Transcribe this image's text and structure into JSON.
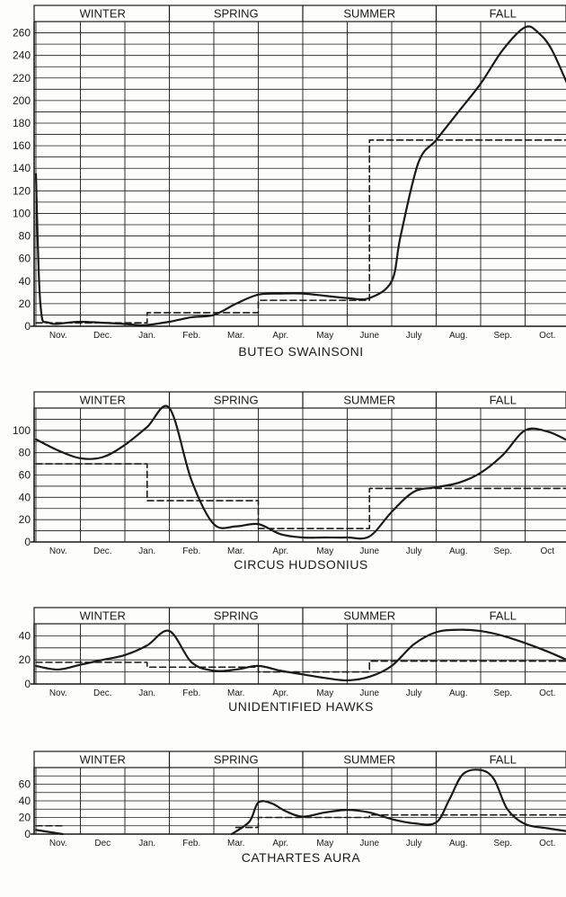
{
  "chart_data": [
    {
      "type": "line",
      "title": "BUTEO SWAINSONI",
      "seasons": [
        "WINTER",
        "SPRING",
        "SUMMER",
        "FALL"
      ],
      "categories": [
        "Nov.",
        "Dec.",
        "Jan.",
        "Feb.",
        "Mar.",
        "Apr.",
        "May",
        "June",
        "July",
        "Aug.",
        "Sep.",
        "Oct."
      ],
      "ylim": [
        0,
        270
      ],
      "yticks": [
        0,
        20,
        40,
        60,
        80,
        100,
        120,
        140,
        160,
        180,
        200,
        220,
        240,
        260
      ],
      "grid": true,
      "series": [
        {
          "style": "solid",
          "points": [
            [
              0,
              135
            ],
            [
              0.1,
              20
            ],
            [
              0.3,
              3
            ],
            [
              1,
              4
            ],
            [
              2,
              2
            ],
            [
              2.45,
              1
            ],
            [
              3,
              4
            ],
            [
              3.5,
              8
            ],
            [
              4,
              10
            ],
            [
              4.5,
              20
            ],
            [
              5,
              28
            ],
            [
              5.5,
              29
            ],
            [
              6,
              29
            ],
            [
              6.5,
              27
            ],
            [
              7,
              25
            ],
            [
              7.5,
              25
            ],
            [
              8,
              40
            ],
            [
              8.2,
              80
            ],
            [
              8.6,
              145
            ],
            [
              9,
              165
            ],
            [
              9.5,
              190
            ],
            [
              10,
              215
            ],
            [
              10.5,
              245
            ],
            [
              11,
              265
            ],
            [
              11.3,
              260
            ],
            [
              11.6,
              245
            ],
            [
              12,
              210
            ]
          ]
        },
        {
          "style": "dashed",
          "points": [
            [
              0,
              3
            ],
            [
              2.5,
              3
            ],
            [
              2.5,
              12
            ],
            [
              5,
              12
            ],
            [
              5,
              23
            ],
            [
              7.5,
              23
            ],
            [
              7.5,
              165
            ],
            [
              12,
              165
            ]
          ]
        }
      ]
    },
    {
      "type": "line",
      "title": "CIRCUS HUDSONIUS",
      "seasons": [
        "WINTER",
        "SPRING",
        "SUMMER",
        "FALL"
      ],
      "categories": [
        "Nov.",
        "Dec.",
        "Jan.",
        "Feb.",
        "Mar.",
        "Apr.",
        "May",
        "June",
        "July",
        "Aug.",
        "Sep.",
        "Oct"
      ],
      "ylim": [
        0,
        120
      ],
      "yticks": [
        0,
        20,
        40,
        60,
        80,
        100
      ],
      "grid": true,
      "series": [
        {
          "style": "solid",
          "points": [
            [
              0,
              92
            ],
            [
              0.5,
              82
            ],
            [
              1,
              75
            ],
            [
              1.5,
              76
            ],
            [
              2,
              87
            ],
            [
              2.5,
              103
            ],
            [
              3,
              120
            ],
            [
              3.5,
              55
            ],
            [
              4,
              16
            ],
            [
              4.5,
              14
            ],
            [
              5,
              16
            ],
            [
              5.5,
              7
            ],
            [
              6,
              4
            ],
            [
              6.5,
              4
            ],
            [
              7,
              4
            ],
            [
              7.5,
              5
            ],
            [
              8,
              27
            ],
            [
              8.5,
              45
            ],
            [
              9,
              49
            ],
            [
              9.5,
              53
            ],
            [
              10,
              62
            ],
            [
              10.5,
              78
            ],
            [
              11,
              100
            ],
            [
              11.5,
              99
            ],
            [
              12,
              90
            ]
          ]
        },
        {
          "style": "dashed",
          "points": [
            [
              0,
              70
            ],
            [
              2.5,
              70
            ],
            [
              2.5,
              37
            ],
            [
              5,
              37
            ],
            [
              5,
              12
            ],
            [
              7.5,
              12
            ],
            [
              7.5,
              48
            ],
            [
              12,
              48
            ]
          ]
        }
      ]
    },
    {
      "type": "line",
      "title": "UNIDENTIFIED HAWKS",
      "seasons": [
        "WINTER",
        "SPRING",
        "SUMMER",
        "FALL"
      ],
      "categories": [
        "Nov.",
        "Dec.",
        "Jan.",
        "Feb.",
        "Mar.",
        "Apr.",
        "May",
        "June",
        "July",
        "Aug.",
        "Sep.",
        "Oct."
      ],
      "ylim": [
        0,
        50
      ],
      "yticks": [
        0,
        20,
        40
      ],
      "grid": true,
      "series": [
        {
          "style": "solid",
          "points": [
            [
              0,
              15
            ],
            [
              0.5,
              12
            ],
            [
              1,
              16
            ],
            [
              1.5,
              20
            ],
            [
              2,
              24
            ],
            [
              2.5,
              32
            ],
            [
              3,
              44
            ],
            [
              3.5,
              18
            ],
            [
              4,
              11
            ],
            [
              4.5,
              12
            ],
            [
              5,
              15
            ],
            [
              5.5,
              11
            ],
            [
              6,
              8
            ],
            [
              6.5,
              5
            ],
            [
              7,
              3
            ],
            [
              7.5,
              6
            ],
            [
              8,
              15
            ],
            [
              8.5,
              33
            ],
            [
              9,
              43
            ],
            [
              9.5,
              45
            ],
            [
              10,
              44
            ],
            [
              10.5,
              40
            ],
            [
              11,
              34
            ],
            [
              11.5,
              27
            ],
            [
              12,
              19
            ]
          ]
        },
        {
          "style": "dashed",
          "points": [
            [
              0,
              18
            ],
            [
              2.5,
              18
            ],
            [
              2.5,
              14
            ],
            [
              5,
              14
            ],
            [
              5,
              10
            ],
            [
              7.5,
              10
            ],
            [
              7.5,
              19
            ],
            [
              12,
              19
            ]
          ]
        }
      ]
    },
    {
      "type": "line",
      "title": "CATHARTES AURA",
      "seasons": [
        "WINTER",
        "SPRING",
        "SUMMER",
        "FALL"
      ],
      "categories": [
        "Nov.",
        "Dec",
        "Jan.",
        "Feb.",
        "Mar.",
        "Apr.",
        "May",
        "June",
        "July",
        "Aug.",
        "Sep.",
        "Oct."
      ],
      "ylim": [
        0,
        80
      ],
      "yticks": [
        0,
        20,
        40,
        60
      ],
      "grid": true,
      "series": [
        {
          "style": "solid",
          "points": [
            [
              0,
              5
            ],
            [
              0.6,
              0
            ]
          ]
        },
        {
          "style": "solid",
          "points": [
            [
              4.4,
              0
            ],
            [
              4.8,
              15
            ],
            [
              5,
              38
            ],
            [
              5.3,
              37
            ],
            [
              5.6,
              28
            ],
            [
              6,
              21
            ],
            [
              6.5,
              26
            ],
            [
              7,
              29
            ],
            [
              7.5,
              26
            ],
            [
              8,
              18
            ],
            [
              8.5,
              13
            ],
            [
              9,
              14
            ],
            [
              9.3,
              42
            ],
            [
              9.6,
              72
            ],
            [
              10,
              77
            ],
            [
              10.3,
              66
            ],
            [
              10.6,
              30
            ],
            [
              11,
              12
            ],
            [
              11.5,
              7
            ],
            [
              12,
              3
            ]
          ]
        },
        {
          "style": "dashed",
          "points": [
            [
              0,
              10
            ],
            [
              0.6,
              10
            ]
          ]
        },
        {
          "style": "dashed",
          "points": [
            [
              4.5,
              8
            ],
            [
              5,
              8
            ],
            [
              5,
              20
            ],
            [
              7.5,
              20
            ],
            [
              7.5,
              23
            ],
            [
              12,
              23
            ]
          ]
        }
      ]
    }
  ]
}
